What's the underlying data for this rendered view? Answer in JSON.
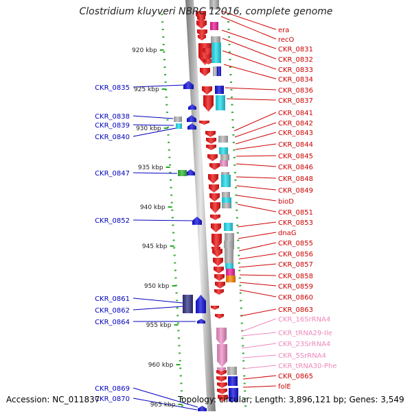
{
  "title": "Clostridium kluyveri NBRC 12016, complete genome",
  "footer": {
    "accession": "Accession: NC_011837",
    "topology": "Topology: circular; Length: 3,896,121 bp; Genes: 3,549"
  },
  "colors": {
    "red": "#ee1111",
    "blue": "#1111dd",
    "cyan": "#22ddee",
    "pink": "#f090c8",
    "grey": "#b8b8b8",
    "magenta": "#ee2299",
    "green": "#33bb33",
    "navy": "#333388",
    "orange": "#ff8800",
    "label_red": "#cc0000",
    "label_blue": "#0000bb",
    "label_pink": "#ee88bb"
  },
  "scale_ticks": [
    {
      "label": "920 kbp",
      "value": 920
    },
    {
      "label": "925 kbp",
      "value": 925
    },
    {
      "label": "930 kbp",
      "value": 930
    },
    {
      "label": "935 kbp",
      "value": 935
    },
    {
      "label": "940 kbp",
      "value": 940
    },
    {
      "label": "945 kbp",
      "value": 945
    },
    {
      "label": "950 kbp",
      "value": 950
    },
    {
      "label": "955 kbp",
      "value": 955
    },
    {
      "label": "960 kbp",
      "value": 960
    },
    {
      "label": "965 kbp",
      "value": 965
    }
  ],
  "left_labels": [
    {
      "text": "CKR_0835"
    },
    {
      "text": "CKR_0838"
    },
    {
      "text": "CKR_0839"
    },
    {
      "text": "CKR_0840"
    },
    {
      "text": "CKR_0847"
    },
    {
      "text": "CKR_0852"
    },
    {
      "text": "CKR_0861"
    },
    {
      "text": "CKR_0862"
    },
    {
      "text": "CKR_0864"
    },
    {
      "text": "CKR_0869"
    },
    {
      "text": "CKR_0870"
    }
  ],
  "right_labels": [
    {
      "text": "era",
      "color": "red"
    },
    {
      "text": "recO",
      "color": "red"
    },
    {
      "text": "CKR_0831",
      "color": "red"
    },
    {
      "text": "CKR_0832",
      "color": "red"
    },
    {
      "text": "CKR_0833",
      "color": "red"
    },
    {
      "text": "CKR_0834",
      "color": "red"
    },
    {
      "text": "CKR_0836",
      "color": "red"
    },
    {
      "text": "CKR_0837",
      "color": "red"
    },
    {
      "text": "CKR_0841",
      "color": "red"
    },
    {
      "text": "CKR_0842",
      "color": "red"
    },
    {
      "text": "CKR_0843",
      "color": "red"
    },
    {
      "text": "CKR_0844",
      "color": "red"
    },
    {
      "text": "CKR_0845",
      "color": "red"
    },
    {
      "text": "CKR_0846",
      "color": "red"
    },
    {
      "text": "CKR_0848",
      "color": "red"
    },
    {
      "text": "CKR_0849",
      "color": "red"
    },
    {
      "text": "bioD",
      "color": "red"
    },
    {
      "text": "CKR_0851",
      "color": "red"
    },
    {
      "text": "CKR_0853",
      "color": "red"
    },
    {
      "text": "dnaG",
      "color": "red"
    },
    {
      "text": "CKR_0855",
      "color": "red"
    },
    {
      "text": "CKR_0856",
      "color": "red"
    },
    {
      "text": "CKR_0857",
      "color": "red"
    },
    {
      "text": "CKR_0858",
      "color": "red"
    },
    {
      "text": "CKR_0859",
      "color": "red"
    },
    {
      "text": "CKR_0860",
      "color": "red"
    },
    {
      "text": "CKR_0863",
      "color": "red"
    },
    {
      "text": "CKR_16SrRNA4",
      "color": "pink"
    },
    {
      "text": "CKR_tRNA29-Ile",
      "color": "pink"
    },
    {
      "text": "CKR_23SrRNA4",
      "color": "pink"
    },
    {
      "text": "CKR_5SrRNA4",
      "color": "pink"
    },
    {
      "text": "CKR_tRNA30-Phe",
      "color": "pink"
    },
    {
      "text": "CKR_0865",
      "color": "red"
    },
    {
      "text": "folE",
      "color": "red"
    }
  ],
  "features": [
    {
      "type": "arrow",
      "color": "red"
    },
    {
      "type": "arrow",
      "color": "red"
    },
    {
      "type": "arrow",
      "color": "red"
    },
    {
      "type": "arrow",
      "color": "red"
    },
    {
      "type": "arrow",
      "color": "red"
    },
    {
      "type": "arrow",
      "color": "red"
    },
    {
      "type": "arrow",
      "color": "red"
    },
    {
      "type": "arrow",
      "color": "red"
    },
    {
      "type": "arrow",
      "color": "red"
    },
    {
      "type": "arrow",
      "color": "red"
    },
    {
      "type": "arrow",
      "color": "red"
    },
    {
      "type": "arrow",
      "color": "red"
    },
    {
      "type": "arrow",
      "color": "red"
    },
    {
      "type": "arrow",
      "color": "red"
    },
    {
      "type": "arrow",
      "color": "red"
    },
    {
      "type": "arrow",
      "color": "red"
    },
    {
      "type": "arrow",
      "color": "red"
    },
    {
      "type": "arrow",
      "color": "red"
    },
    {
      "type": "arrow",
      "color": "red"
    },
    {
      "type": "arrow",
      "color": "red"
    },
    {
      "type": "arrow",
      "color": "red"
    },
    {
      "type": "arrow",
      "color": "red"
    },
    {
      "type": "arrow",
      "color": "red"
    },
    {
      "type": "arrow",
      "color": "red"
    },
    {
      "type": "arrow",
      "color": "red"
    },
    {
      "type": "arrow",
      "color": "red"
    },
    {
      "type": "arrow",
      "color": "red"
    },
    {
      "type": "arrow",
      "color": "red"
    },
    {
      "type": "arrow",
      "color": "red"
    },
    {
      "type": "arrow",
      "color": "red"
    },
    {
      "type": "arrow",
      "color": "red"
    },
    {
      "type": "arrow",
      "color": "red"
    },
    {
      "type": "arrow",
      "color": "red"
    },
    {
      "type": "arrow",
      "color": "red"
    },
    {
      "type": "arrow",
      "color": "red"
    },
    {
      "type": "arrow",
      "color": "red"
    },
    {
      "type": "arrow",
      "color": "red"
    },
    {
      "type": "arrow",
      "color": "red"
    },
    {
      "type": "arrow",
      "color": "pink"
    },
    {
      "type": "arrow",
      "color": "pink"
    },
    {
      "type": "arrow",
      "color": "pink"
    },
    {
      "type": "arrow",
      "color": "blue"
    },
    {
      "type": "arrow",
      "color": "blue"
    },
    {
      "type": "arrow",
      "color": "blue"
    },
    {
      "type": "arrow",
      "color": "blue"
    },
    {
      "type": "arrow",
      "color": "blue"
    },
    {
      "type": "arrow",
      "color": "blue"
    },
    {
      "type": "arrow",
      "color": "blue"
    },
    {
      "type": "arrow",
      "color": "blue"
    },
    {
      "type": "arrow",
      "color": "blue"
    },
    {
      "type": "box",
      "color": "green"
    },
    {
      "type": "box",
      "color": "grey"
    },
    {
      "type": "box",
      "color": "cyan"
    },
    {
      "type": "box",
      "color": "navy"
    },
    {
      "type": "box",
      "color": "grey"
    },
    {
      "type": "box",
      "color": "magenta"
    },
    {
      "type": "box",
      "color": "grey"
    },
    {
      "type": "box",
      "color": "cyan"
    },
    {
      "type": "box",
      "color": "grey"
    },
    {
      "type": "box",
      "color": "blue"
    },
    {
      "type": "box",
      "color": "blue"
    },
    {
      "type": "box",
      "color": "cyan"
    },
    {
      "type": "box",
      "color": "grey"
    },
    {
      "type": "box",
      "color": "cyan"
    },
    {
      "type": "box",
      "color": "grey"
    },
    {
      "type": "box",
      "color": "pink"
    },
    {
      "type": "box",
      "color": "grey"
    },
    {
      "type": "box",
      "color": "cyan"
    },
    {
      "type": "box",
      "color": "grey"
    },
    {
      "type": "box",
      "color": "cyan"
    },
    {
      "type": "box",
      "color": "grey"
    },
    {
      "type": "box",
      "color": "cyan"
    },
    {
      "type": "box",
      "color": "grey"
    },
    {
      "type": "box",
      "color": "grey"
    },
    {
      "type": "box",
      "color": "cyan"
    },
    {
      "type": "box",
      "color": "magenta"
    },
    {
      "type": "box",
      "color": "orange"
    },
    {
      "type": "box",
      "color": "grey"
    },
    {
      "type": "box",
      "color": "grey"
    },
    {
      "type": "box",
      "color": "grey"
    },
    {
      "type": "box",
      "color": "blue"
    },
    {
      "type": "box",
      "color": "blue"
    },
    {
      "type": "box",
      "color": "blue"
    }
  ]
}
